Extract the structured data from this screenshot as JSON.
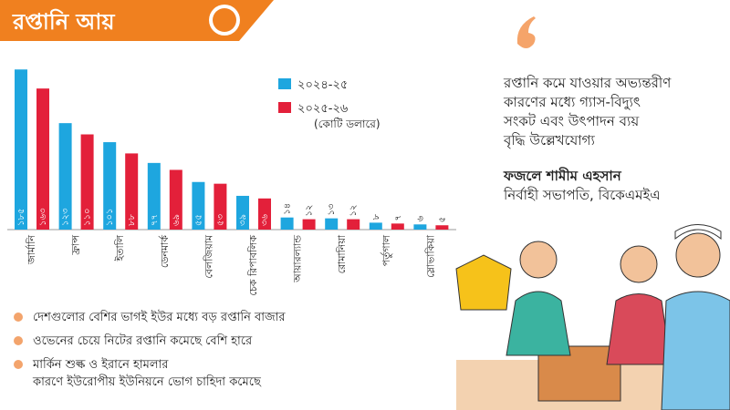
{
  "chart_data": {
    "type": "bar",
    "title": "রপ্তানি আয়",
    "unit_note": "(কোটি ডলারে)",
    "categories": [
      "জার্মানি",
      "ফ্রান্স",
      "ইতালি",
      "ডেনমার্ক",
      "বেলজিয়াম",
      "চেক রিপাবলিক",
      "আয়ারল্যান্ড",
      "রোমানিয়া",
      "পর্তুগাল",
      "স্লোভাকিয়া"
    ],
    "series": [
      {
        "name": "২০২৪-২৫",
        "color": "#1ea6df",
        "values": [
          185,
          123,
          101,
          77,
          55,
          39,
          14,
          13,
          8,
          6
        ],
        "value_labels": [
          "১৮৫",
          "১২৩",
          "১০১",
          "৭৭",
          "৫৫",
          "৩৯",
          "১৪",
          "১৩",
          "৮",
          "৬"
        ]
      },
      {
        "name": "২০২৫-২৬",
        "color": "#e3203a",
        "values": [
          163,
          110,
          88,
          69,
          53,
          36,
          12,
          12,
          7,
          5
        ],
        "value_labels": [
          "১৬৩",
          "১১০",
          "৮৮",
          "৬৯",
          "৫৩",
          "৩৬",
          "১২",
          "১২",
          "৭",
          "৫"
        ]
      }
    ]
  },
  "quote": {
    "lines": [
      "রপ্তানি কমে যাওয়ার অভ্যন্তরীণ",
      "কারণের মধ্যে গ্যাস-বিদ্যুৎ",
      "সংকট এবং উৎপাদন ব্যয়",
      "বৃদ্ধি উল্লেখযোগ্য"
    ],
    "name": "ফজলে শামীম এহসান",
    "designation": "নির্বাহী সভাপতি, বিকেএমইএ"
  },
  "notes": [
    [
      "দেশগুলোর বেশির ভাগই ইউর মধ্যে বড় রপ্তানি বাজার"
    ],
    [
      "ওভেনের চেয়ে নিটের রপ্তানি কমেছে বেশি হারে"
    ],
    [
      "মার্কিন শুল্ক ও ইরানে হামলার",
      "কারণে ইউরোপীয় ইউনিয়নে ভোগ চাহিদা কমেছে"
    ]
  ]
}
